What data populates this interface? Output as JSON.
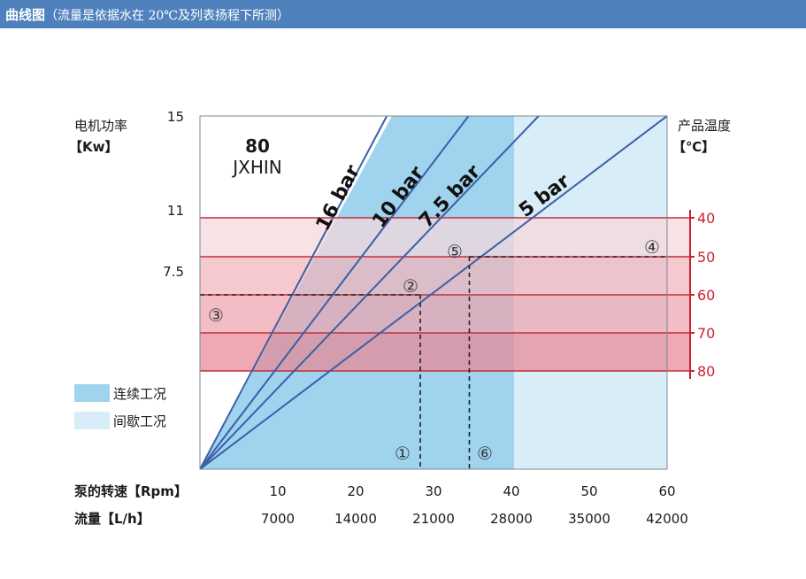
{
  "header": {
    "title": "曲线图",
    "subtitle": "（流量是依据水在 20℃及列表扬程下所测）"
  },
  "colors": {
    "header_bg": "#4f81bd",
    "continuous": "#9fd3ee",
    "intermittent": "#d9edf8",
    "temp_band": "#cc2233",
    "pressure_line": "#3b5fa8"
  },
  "chart_data": {
    "type": "line",
    "title": "80 JXHIN",
    "model": "80",
    "brand": "JXHIN",
    "left_axis": {
      "label": "电机功率",
      "unit": "【Kw】",
      "ticks": [
        "15",
        "11",
        "7.5"
      ],
      "values": [
        15,
        11,
        7.5
      ]
    },
    "right_axis": {
      "label": "产品温度",
      "unit": "【℃】",
      "ticks": [
        "40",
        "50",
        "60",
        "70",
        "80"
      ],
      "values": [
        40,
        50,
        60,
        70,
        80
      ]
    },
    "x_axis": {
      "label": "泵的转速【Rpm】",
      "ticks": [
        "10",
        "20",
        "30",
        "40",
        "50",
        "60"
      ],
      "values": [
        10,
        20,
        30,
        40,
        50,
        60
      ],
      "xlim": [
        0,
        60
      ]
    },
    "x_axis2": {
      "label": "流量【L/h】",
      "ticks": [
        "7000",
        "14000",
        "21000",
        "28000",
        "35000",
        "42000"
      ]
    },
    "series": [
      {
        "name": "16 bar",
        "x": [
          0,
          24
        ],
        "y": [
          0,
          15
        ]
      },
      {
        "name": "10 bar",
        "x": [
          0,
          34.5
        ],
        "y": [
          0,
          15
        ]
      },
      {
        "name": "7.5 bar",
        "x": [
          0,
          43.5
        ],
        "y": [
          0,
          15
        ]
      },
      {
        "name": "5 bar",
        "x": [
          0,
          60
        ],
        "y": [
          0,
          15
        ]
      }
    ],
    "regions": [
      {
        "name": "连续工况",
        "x_range": [
          0,
          40.4
        ]
      },
      {
        "name": "间歇工况",
        "x_range": [
          40.4,
          60
        ]
      }
    ],
    "legend": {
      "position": "left",
      "items": [
        "连续工况",
        "间歇工况"
      ]
    },
    "annotations": [
      {
        "label": "①",
        "x": 26
      },
      {
        "label": "②",
        "x": 27.5
      },
      {
        "label": "③"
      },
      {
        "label": "④"
      },
      {
        "label": "⑤",
        "x": 32.5
      },
      {
        "label": "⑥",
        "x": 36.8
      }
    ],
    "guides": [
      {
        "x": 28.3,
        "temp": 60
      },
      {
        "x": 34.6,
        "temp": 50
      }
    ]
  }
}
